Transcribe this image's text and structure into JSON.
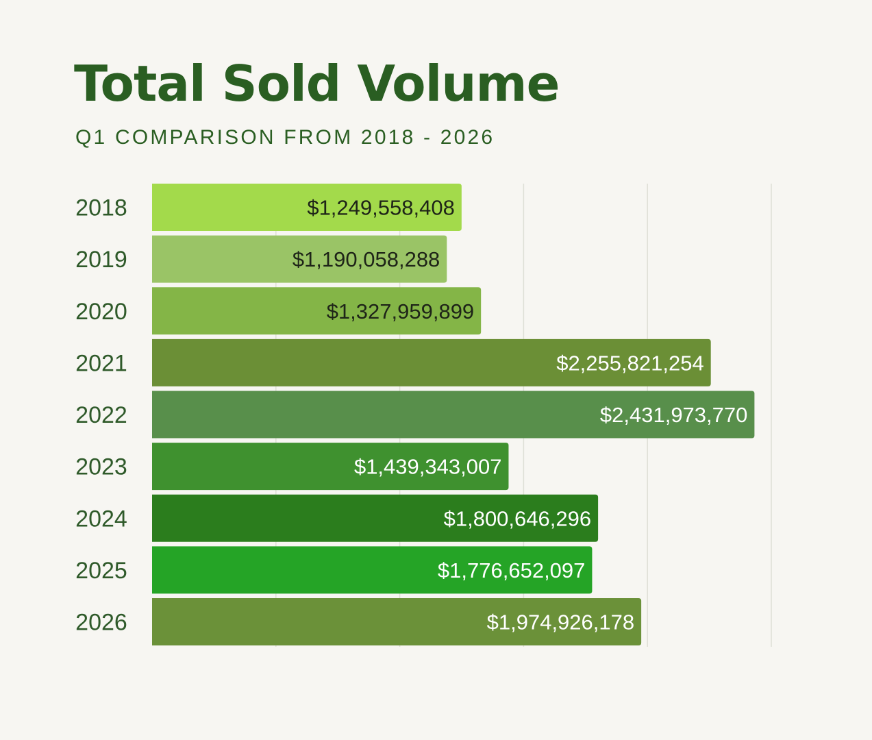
{
  "header": {
    "title": "Total Sold Volume",
    "subtitle": "Q1 COMPARISON FROM 2018 - 2026"
  },
  "chart_data": {
    "type": "bar",
    "orientation": "horizontal",
    "title": "Total Sold Volume",
    "subtitle": "Q1 COMPARISON FROM 2018 - 2026",
    "xlabel": "",
    "ylabel": "",
    "xlim": [
      0,
      2500000000
    ],
    "grid": true,
    "legend": "none",
    "categories": [
      "2018",
      "2019",
      "2020",
      "2021",
      "2022",
      "2023",
      "2024",
      "2025",
      "2026"
    ],
    "values": [
      1249558408,
      1190058288,
      1327959899,
      2255821254,
      2431973770,
      1439343007,
      1800646296,
      1776652097,
      1974926178
    ],
    "labels": [
      "$1,249,558,408",
      "$1,190,058,288",
      "$1,327,959,899",
      "$2,255,821,254",
      "$2,431,973,770",
      "$1,439,343,007",
      "$1,800,646,296",
      "$1,776,652,097",
      "$1,974,926,178"
    ],
    "colors": [
      "#a3da4b",
      "#9ac466",
      "#84b547",
      "#6b8f36",
      "#588f4b",
      "#3f912f",
      "#2b7d1d",
      "#25a426",
      "#6b9139"
    ],
    "label_colors": [
      "#1e2418",
      "#1e2418",
      "#1e2418",
      "#ffffff",
      "#ffffff",
      "#ffffff",
      "#ffffff",
      "#ffffff",
      "#ffffff"
    ]
  }
}
